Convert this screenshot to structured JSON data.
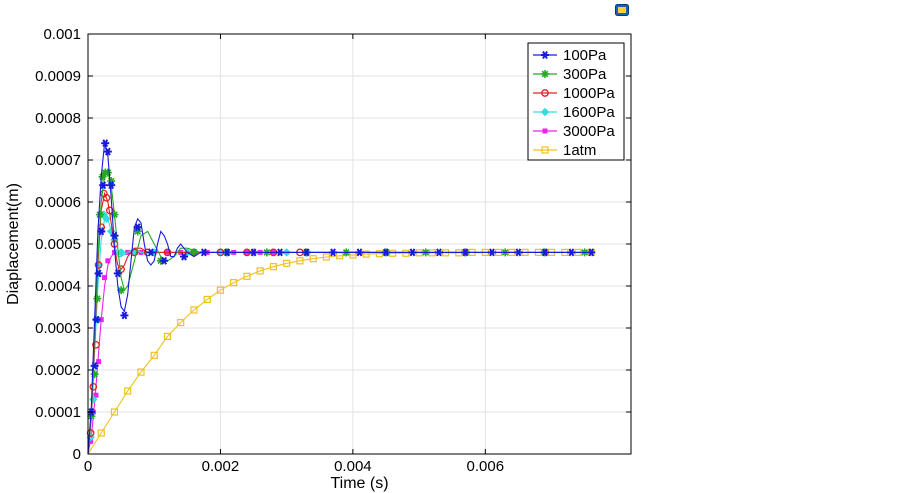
{
  "chart_data": {
    "type": "line",
    "title": "",
    "xlabel": "Time (s)",
    "ylabel": "Diaplacement(m)",
    "xlim": [
      0,
      0.0082
    ],
    "ylim": [
      0,
      0.001
    ],
    "xticks": [
      0,
      0.002,
      0.004,
      0.006
    ],
    "xtick_labels": [
      "0",
      "0.002",
      "0.004",
      "0.006"
    ],
    "yticks": [
      0,
      0.0001,
      0.0002,
      0.0003,
      0.0004,
      0.0005,
      0.0006,
      0.0007,
      0.0008,
      0.0009,
      0.001
    ],
    "ytick_labels": [
      "0",
      "0.0001",
      "0.0002",
      "0.0003",
      "0.0004",
      "0.0005",
      "0.0006",
      "0.0007",
      "0.0008",
      "0.0009",
      "0.001"
    ],
    "grid": true,
    "legend_position": "top-right",
    "series": [
      {
        "name": "100Pa",
        "color": "#1a1adc",
        "marker": "star6",
        "x": [
          0,
          5e-05,
          0.0001,
          0.00015,
          0.0002,
          0.00025,
          0.0003,
          0.00035,
          0.0004,
          0.00045,
          0.0005,
          0.00055,
          0.0006,
          0.00065,
          0.0007,
          0.00075,
          0.0008,
          0.00085,
          0.0009,
          0.00095,
          0.001,
          0.00105,
          0.0011,
          0.00115,
          0.0012,
          0.00125,
          0.0013,
          0.00135,
          0.0014,
          0.00145,
          0.0015,
          0.0016,
          0.0017,
          0.0018,
          0.0019,
          0.002,
          0.0022,
          0.0024,
          0.0026,
          0.0028,
          0.003,
          0.0035,
          0.004,
          0.005,
          0.006,
          0.007,
          0.0076
        ],
        "y": [
          0,
          0.00011,
          0.00032,
          0.00053,
          0.00066,
          0.00074,
          0.00071,
          0.00061,
          0.00049,
          0.0004,
          0.00035,
          0.00034,
          0.00038,
          0.00046,
          0.00054,
          0.00056,
          0.00055,
          0.0005,
          0.00046,
          0.00045,
          0.00046,
          0.0005,
          0.00053,
          0.00052,
          0.0005,
          0.00047,
          0.00047,
          0.00049,
          0.0005,
          0.00049,
          0.00048,
          0.00047,
          0.00048,
          0.00048,
          0.00048,
          0.00048,
          0.00048,
          0.00048,
          0.00048,
          0.00048,
          0.00048,
          0.00048,
          0.00048,
          0.00048,
          0.00048,
          0.00048,
          0.00048
        ],
        "markers_x": [
          5e-05,
          0.0001,
          0.00013,
          0.00016,
          0.0002,
          0.00023,
          0.00026,
          0.0003,
          0.00035,
          0.0004,
          0.00045,
          0.00055,
          0.00075,
          0.00095,
          0.00115,
          0.00145,
          0.00175,
          0.0021,
          0.0025,
          0.0029,
          0.0033,
          0.0037,
          0.0041,
          0.0045,
          0.0049,
          0.0053,
          0.0057,
          0.0061,
          0.0065,
          0.0069,
          0.0073,
          0.0076
        ],
        "markers_y": [
          0.0001,
          0.00021,
          0.00032,
          0.00043,
          0.00053,
          0.00064,
          0.00074,
          0.00072,
          0.00064,
          0.00052,
          0.00043,
          0.00033,
          0.00054,
          0.00048,
          0.00046,
          0.00047,
          0.00048,
          0.00048,
          0.00048,
          0.00048,
          0.00048,
          0.00048,
          0.00048,
          0.00048,
          0.00048,
          0.00048,
          0.00048,
          0.00048,
          0.00048,
          0.00048,
          0.00048,
          0.00048
        ]
      },
      {
        "name": "300Pa",
        "color": "#22aa22",
        "marker": "star4",
        "x": [
          0,
          5e-05,
          0.0001,
          0.00015,
          0.0002,
          0.00025,
          0.0003,
          0.00035,
          0.0004,
          0.00045,
          0.0005,
          0.00055,
          0.0006,
          0.0007,
          0.0008,
          0.0009,
          0.001,
          0.0011,
          0.0012,
          0.0013,
          0.0014,
          0.0015,
          0.0017,
          0.002,
          0.003,
          0.004,
          0.005,
          0.006,
          0.007,
          0.0076
        ],
        "y": [
          0,
          0.0001,
          0.00029,
          0.00047,
          0.0006,
          0.00066,
          0.00067,
          0.00064,
          0.00057,
          0.00049,
          0.00042,
          0.00039,
          0.0004,
          0.00046,
          0.00052,
          0.00053,
          0.0005,
          0.00047,
          0.00046,
          0.00047,
          0.00049,
          0.00049,
          0.00048,
          0.00048,
          0.00048,
          0.00048,
          0.00048,
          0.00048,
          0.00048,
          0.00048
        ],
        "markers_x": [
          5e-05,
          0.0001,
          0.00014,
          0.00018,
          0.00022,
          0.00026,
          0.0003,
          0.00035,
          0.0004,
          0.0005,
          0.00075,
          0.0011,
          0.0016,
          0.0021,
          0.0027,
          0.0033,
          0.0039,
          0.0045,
          0.0051,
          0.0057,
          0.0063,
          0.0069,
          0.0075
        ],
        "markers_y": [
          9e-05,
          0.00019,
          0.00037,
          0.00057,
          0.00066,
          0.00067,
          0.00067,
          0.00065,
          0.00057,
          0.00039,
          0.00053,
          0.00046,
          0.00048,
          0.00048,
          0.00048,
          0.00048,
          0.00048,
          0.00048,
          0.00048,
          0.00048,
          0.00048,
          0.00048,
          0.00048
        ]
      },
      {
        "name": "1000Pa",
        "color": "#e02020",
        "marker": "circle",
        "x": [
          0,
          5e-05,
          0.0001,
          0.00015,
          0.0002,
          0.00025,
          0.0003,
          0.00035,
          0.0004,
          0.00045,
          0.0005,
          0.00055,
          0.0006,
          0.0007,
          0.0008,
          0.0009,
          0.001,
          0.0012,
          0.0015,
          0.002,
          0.003,
          0.004,
          0.005,
          0.006,
          0.007,
          0.0076
        ],
        "y": [
          0,
          9e-05,
          0.00026,
          0.00045,
          0.00058,
          0.00062,
          0.0006,
          0.00055,
          0.00049,
          0.00045,
          0.00044,
          0.00045,
          0.00047,
          0.00049,
          0.00049,
          0.00048,
          0.00048,
          0.00048,
          0.00048,
          0.00048,
          0.00048,
          0.00048,
          0.00048,
          0.00048,
          0.00048,
          0.00048
        ],
        "markers_x": [
          4e-05,
          8e-05,
          0.00012,
          0.00016,
          0.0002,
          0.00024,
          0.00028,
          0.00033,
          0.0004,
          0.0005,
          0.0007,
          0.0009,
          0.0012,
          0.0016,
          0.002,
          0.0024,
          0.0028,
          0.0032
        ],
        "markers_y": [
          5e-05,
          0.00016,
          0.00026,
          0.00045,
          0.00054,
          0.00062,
          0.00061,
          0.00058,
          0.0005,
          0.00044,
          0.00048,
          0.00048,
          0.00048,
          0.00048,
          0.00048,
          0.00048,
          0.00048,
          0.00048
        ]
      },
      {
        "name": "1600Pa",
        "color": "#33dddd",
        "marker": "diamond",
        "x": [
          0,
          5e-05,
          0.0001,
          0.00015,
          0.0002,
          0.00025,
          0.0003,
          0.00035,
          0.0004,
          0.00045,
          0.0005,
          0.0006,
          0.0007,
          0.0008,
          0.001,
          0.0015,
          0.002,
          0.003,
          0.004,
          0.005,
          0.006,
          0.007,
          0.0076
        ],
        "y": [
          0,
          8e-05,
          0.00024,
          0.0004,
          0.00051,
          0.00056,
          0.00056,
          0.00053,
          0.0005,
          0.00047,
          0.00047,
          0.00048,
          0.00049,
          0.00048,
          0.00048,
          0.00048,
          0.00048,
          0.00048,
          0.00048,
          0.00048,
          0.00048,
          0.00048,
          0.00048
        ],
        "markers_x": [
          4e-05,
          8e-05,
          0.00012,
          0.00016,
          0.0002,
          0.00024,
          0.00028,
          0.00035,
          0.0004,
          0.0005,
          0.0007,
          0.001,
          0.0015,
          0.002,
          0.0025,
          0.003
        ],
        "markers_y": [
          4e-05,
          0.00013,
          0.00032,
          0.00045,
          0.00053,
          0.00057,
          0.00056,
          0.00053,
          0.00051,
          0.00048,
          0.00048,
          0.00048,
          0.00048,
          0.00048,
          0.00048,
          0.00048
        ]
      },
      {
        "name": "3000Pa",
        "color": "#ee22ee",
        "marker": "square",
        "x": [
          0,
          5e-05,
          0.0001,
          0.00015,
          0.0002,
          0.00025,
          0.0003,
          0.00035,
          0.0004,
          0.0005,
          0.0006,
          0.0008,
          0.001,
          0.0015,
          0.002,
          0.003,
          0.004,
          0.005,
          0.006,
          0.007,
          0.0076
        ],
        "y": [
          0,
          4e-05,
          0.00012,
          0.00022,
          0.00032,
          0.0004,
          0.00045,
          0.00047,
          0.00048,
          0.00048,
          0.00048,
          0.00048,
          0.00048,
          0.00048,
          0.00048,
          0.00048,
          0.00048,
          0.00048,
          0.00048,
          0.00048,
          0.00048
        ],
        "markers_x": [
          4e-05,
          8e-05,
          0.00012,
          0.00016,
          0.0002,
          0.00025,
          0.0003,
          0.0004,
          0.0005,
          0.0006,
          0.0008,
          0.001,
          0.0012,
          0.0014,
          0.0016,
          0.0018,
          0.002,
          0.0022,
          0.0024,
          0.0026,
          0.0028
        ],
        "markers_y": [
          3e-05,
          0.0001,
          0.00014,
          0.00022,
          0.00032,
          0.00042,
          0.00046,
          0.00048,
          0.00048,
          0.00048,
          0.00048,
          0.00048,
          0.00048,
          0.00048,
          0.00048,
          0.00048,
          0.00048,
          0.00048,
          0.00048,
          0.00048,
          0.00048
        ]
      },
      {
        "name": "1atm",
        "color": "#f0c020",
        "marker": "square-open",
        "x": [
          0,
          0.0002,
          0.0004,
          0.0006,
          0.0008,
          0.001,
          0.0012,
          0.0014,
          0.0016,
          0.0018,
          0.002,
          0.0022,
          0.0024,
          0.0026,
          0.0028,
          0.003,
          0.0032,
          0.0034,
          0.0036,
          0.0038,
          0.004,
          0.0042,
          0.0044,
          0.0046,
          0.0048,
          0.005,
          0.0052,
          0.0054,
          0.0056,
          0.0058,
          0.006,
          0.0062,
          0.0064,
          0.0066,
          0.0068,
          0.007,
          0.0072,
          0.0074,
          0.0076
        ],
        "y": [
          0,
          5e-05,
          0.0001,
          0.00015,
          0.000195,
          0.000235,
          0.00028,
          0.000313,
          0.000343,
          0.000368,
          0.00039,
          0.000408,
          0.000423,
          0.000436,
          0.000446,
          0.000454,
          0.00046,
          0.000465,
          0.000469,
          0.000472,
          0.000474,
          0.000476,
          0.000477,
          0.000478,
          0.000478,
          0.000479,
          0.000479,
          0.000479,
          0.000479,
          0.00048,
          0.00048,
          0.00048,
          0.00048,
          0.00048,
          0.00048,
          0.00048,
          0.00048,
          0.00048,
          0.00048
        ],
        "markers_x": [
          0.0002,
          0.0004,
          0.0006,
          0.0008,
          0.001,
          0.0012,
          0.0014,
          0.0016,
          0.0018,
          0.002,
          0.0022,
          0.0024,
          0.0026,
          0.0028,
          0.003,
          0.0032,
          0.0034,
          0.0036,
          0.0038,
          0.004,
          0.0042,
          0.0044,
          0.0046,
          0.0048,
          0.005,
          0.0052,
          0.0054,
          0.0056,
          0.0058,
          0.006,
          0.0062,
          0.0064,
          0.0066,
          0.0068,
          0.007,
          0.0072,
          0.0074,
          0.0076
        ],
        "markers_y": [
          5e-05,
          0.0001,
          0.00015,
          0.000195,
          0.000235,
          0.00028,
          0.000313,
          0.000343,
          0.000368,
          0.00039,
          0.000408,
          0.000423,
          0.000436,
          0.000446,
          0.000454,
          0.00046,
          0.000465,
          0.000469,
          0.000472,
          0.000474,
          0.000476,
          0.000477,
          0.000478,
          0.000478,
          0.000479,
          0.000479,
          0.000479,
          0.000479,
          0.00048,
          0.00048,
          0.00048,
          0.00048,
          0.00048,
          0.00048,
          0.00048,
          0.00048,
          0.00048,
          0.00048
        ]
      }
    ]
  },
  "toolbar": {
    "icon": "window-icon"
  }
}
